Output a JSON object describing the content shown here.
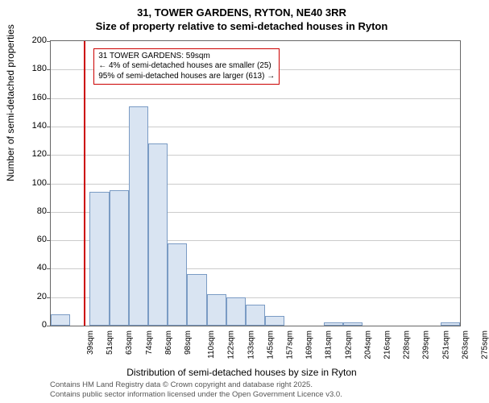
{
  "title_line1": "31, TOWER GARDENS, RYTON, NE40 3RR",
  "title_line2": "Size of property relative to semi-detached houses in Ryton",
  "ylabel": "Number of semi-detached properties",
  "xlabel": "Distribution of semi-detached houses by size in Ryton",
  "chart": {
    "type": "histogram",
    "background_color": "#ffffff",
    "grid_color": "#cccccc",
    "border_color": "#666666",
    "bar_fill": "#d9e4f2",
    "bar_stroke": "#7a9bc4",
    "marker_color": "#cc0000",
    "ylim": [
      0,
      200
    ],
    "ytick_step": 20,
    "yticks": [
      0,
      20,
      40,
      60,
      80,
      100,
      120,
      140,
      160,
      180,
      200
    ],
    "xticks": [
      "39sqm",
      "51sqm",
      "63sqm",
      "74sqm",
      "86sqm",
      "98sqm",
      "110sqm",
      "122sqm",
      "133sqm",
      "145sqm",
      "157sqm",
      "169sqm",
      "181sqm",
      "192sqm",
      "204sqm",
      "216sqm",
      "228sqm",
      "239sqm",
      "251sqm",
      "263sqm",
      "275sqm"
    ],
    "values": [
      8,
      0,
      94,
      95,
      154,
      128,
      58,
      36,
      22,
      20,
      15,
      7,
      0,
      0,
      2,
      2,
      0,
      0,
      0,
      0,
      2
    ],
    "marker_index": 1.7,
    "annotation": {
      "lines": [
        "31 TOWER GARDENS: 59sqm",
        "← 4% of semi-detached houses are smaller (25)",
        "95% of semi-detached houses are larger (613) →"
      ],
      "top_value": 195,
      "left_index": 2.2,
      "border_color": "#cc0000"
    }
  },
  "footer_line1": "Contains HM Land Registry data © Crown copyright and database right 2025.",
  "footer_line2": "Contains public sector information licensed under the Open Government Licence v3.0."
}
